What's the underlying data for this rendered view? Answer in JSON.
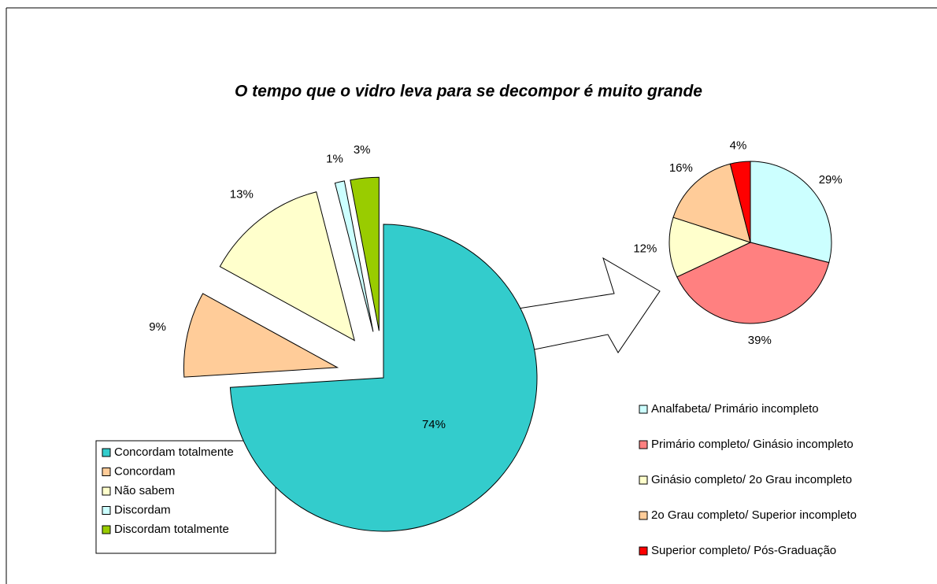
{
  "chart_data": [
    {
      "type": "pie",
      "title": "O tempo que o vidro leva para se decompor é muito grande",
      "categories": [
        "Concordam totalmente",
        "Concordam",
        "Não sabem",
        "Discordam",
        "Discordam totalmente"
      ],
      "values": [
        74,
        9,
        13,
        1,
        3
      ],
      "value_labels": [
        "74%",
        "9%",
        "13%",
        "1%",
        "3%"
      ],
      "colors": [
        "#33CCCC",
        "#FFCC99",
        "#FFFFCC",
        "#CCFFFF",
        "#99CC00"
      ]
    },
    {
      "type": "pie",
      "categories": [
        "Analfabeta/ Primário incompleto",
        "Primário completo/ Ginásio incompleto",
        "Ginásio completo/ 2o Grau incompleto",
        "2o Grau completo/ Superior incompleto",
        "Superior completo/ Pós-Graduação"
      ],
      "values": [
        29,
        39,
        12,
        16,
        4
      ],
      "value_labels": [
        "29%",
        "39%",
        "12%",
        "16%",
        "4%"
      ],
      "colors": [
        "#CCFFFF",
        "#FF8080",
        "#FFFFCC",
        "#FFCC99",
        "#FF0000"
      ]
    }
  ]
}
